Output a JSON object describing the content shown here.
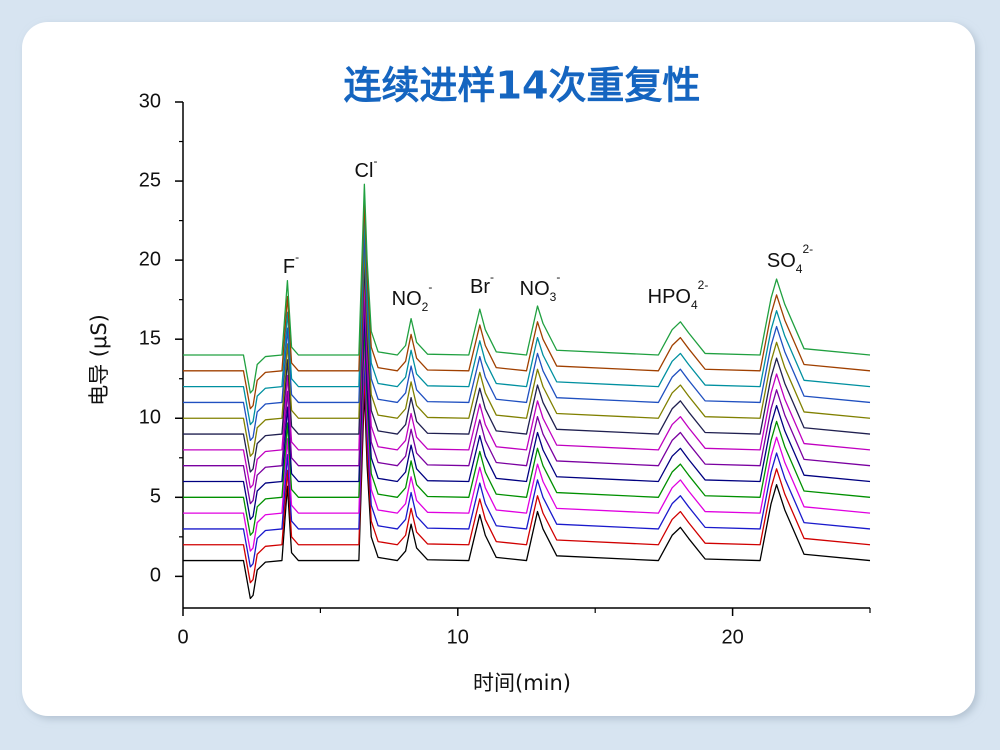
{
  "chart_data": {
    "type": "line",
    "title": "连续进样14次重复性",
    "x_label": "时间(min)",
    "y_label": "电导 (μS)",
    "xlim": [
      0,
      25
    ],
    "ylim": [
      -2,
      30
    ],
    "xticks": [
      0,
      10,
      20
    ],
    "xminorticks": [
      5,
      15,
      25
    ],
    "yticks": [
      0,
      5,
      10,
      15,
      20,
      25,
      30
    ],
    "yminorticks": [
      2.5,
      7.5,
      12.5,
      17.5,
      22.5,
      27.5
    ],
    "x": [
      0,
      2.2,
      2.45,
      2.55,
      2.7,
      3,
      3.6,
      3.8,
      3.95,
      4.2,
      6.4,
      6.6,
      6.7,
      6.85,
      7.1,
      7.8,
      8.1,
      8.3,
      8.5,
      8.9,
      10.4,
      10.8,
      11,
      11.4,
      12.5,
      12.9,
      13.1,
      13.6,
      17.3,
      17.8,
      18.1,
      18.4,
      19,
      21,
      21.4,
      21.6,
      21.9,
      22.6,
      25
    ],
    "series": [
      {
        "color": "#000000",
        "values": [
          1,
          1,
          -1.4,
          -1.2,
          0.4,
          0.9,
          1,
          5.7,
          1.5,
          1,
          1,
          11.8,
          7,
          2.5,
          1.2,
          1,
          1.6,
          3.3,
          1.8,
          1.05,
          1,
          3.9,
          2.6,
          1.2,
          1,
          4.1,
          3,
          1.3,
          1,
          2.6,
          3.1,
          2.4,
          1.1,
          1,
          4.6,
          5.8,
          4.2,
          1.4,
          1
        ]
      },
      {
        "color": "#d00000",
        "values": [
          2,
          2,
          -0.4,
          -0.2,
          1.4,
          1.9,
          2,
          6.7,
          2.5,
          2,
          2,
          12.8,
          8,
          3.5,
          2.2,
          2,
          2.6,
          4.3,
          2.8,
          2.05,
          2,
          4.9,
          3.6,
          2.2,
          2,
          5.1,
          4,
          2.3,
          2,
          3.6,
          4.1,
          3.4,
          2.1,
          2,
          5.6,
          6.8,
          5.2,
          2.4,
          2
        ]
      },
      {
        "color": "#1a1acc",
        "values": [
          3,
          3,
          0.6,
          0.8,
          2.4,
          2.9,
          3,
          7.7,
          3.5,
          3,
          3,
          13.8,
          9,
          4.5,
          3.2,
          3,
          3.6,
          5.3,
          3.8,
          3.05,
          3,
          5.9,
          4.6,
          3.2,
          3,
          6.1,
          5,
          3.3,
          3,
          4.6,
          5.1,
          4.4,
          3.1,
          3,
          6.6,
          7.8,
          6.2,
          3.4,
          3
        ]
      },
      {
        "color": "#e000e0",
        "values": [
          4,
          4,
          1.6,
          1.8,
          3.4,
          3.9,
          4,
          8.7,
          4.5,
          4,
          4,
          14.8,
          10,
          5.5,
          4.2,
          4,
          4.6,
          6.3,
          4.8,
          4.05,
          4,
          6.9,
          5.6,
          4.2,
          4,
          7.1,
          6,
          4.3,
          4,
          5.6,
          6.1,
          5.4,
          4.1,
          4,
          7.6,
          8.8,
          7.2,
          4.4,
          4
        ]
      },
      {
        "color": "#009000",
        "values": [
          5,
          5,
          2.6,
          2.8,
          4.4,
          4.9,
          5,
          9.7,
          5.5,
          5,
          5,
          15.8,
          11,
          6.5,
          5.2,
          5,
          5.6,
          7.3,
          5.8,
          5.05,
          5,
          7.9,
          6.6,
          5.2,
          5,
          8.1,
          7,
          5.3,
          5,
          6.6,
          7.1,
          6.4,
          5.1,
          5,
          8.6,
          9.8,
          8.2,
          5.4,
          5
        ]
      },
      {
        "color": "#000080",
        "values": [
          6,
          6,
          3.6,
          3.8,
          5.4,
          5.9,
          6,
          10.7,
          6.5,
          6,
          6,
          16.8,
          12,
          7.5,
          6.2,
          6,
          6.6,
          8.3,
          6.8,
          6.05,
          6,
          8.9,
          7.6,
          6.2,
          6,
          9.1,
          8,
          6.3,
          6,
          7.6,
          8.1,
          7.4,
          6.1,
          6,
          9.6,
          10.8,
          9.2,
          6.4,
          6
        ]
      },
      {
        "color": "#7a00a0",
        "values": [
          7,
          7,
          4.6,
          4.8,
          6.4,
          6.9,
          7,
          11.7,
          7.5,
          7,
          7,
          17.8,
          13,
          8.5,
          7.2,
          7,
          7.6,
          9.3,
          7.8,
          7.05,
          7,
          9.9,
          8.6,
          7.2,
          7,
          10.1,
          9,
          7.3,
          7,
          8.6,
          9.1,
          8.4,
          7.1,
          7,
          10.6,
          11.8,
          10.2,
          7.4,
          7
        ]
      },
      {
        "color": "#c000c0",
        "values": [
          8,
          8,
          5.6,
          5.8,
          7.4,
          7.9,
          8,
          12.7,
          8.5,
          8,
          8,
          18.8,
          14,
          9.5,
          8.2,
          8,
          8.6,
          10.3,
          8.8,
          8.05,
          8,
          10.9,
          9.6,
          8.2,
          8,
          11.1,
          10,
          8.3,
          8,
          9.6,
          10.1,
          9.4,
          8.1,
          8,
          11.6,
          12.8,
          11.2,
          8.4,
          8
        ]
      },
      {
        "color": "#202050",
        "values": [
          9,
          9,
          6.6,
          6.8,
          8.4,
          8.9,
          9,
          13.7,
          9.5,
          9,
          9,
          19.8,
          15,
          10.5,
          9.2,
          9,
          9.6,
          11.3,
          9.8,
          9.05,
          9,
          11.9,
          10.6,
          9.2,
          9,
          12.1,
          11,
          9.3,
          9,
          10.6,
          11.1,
          10.4,
          9.1,
          9,
          12.6,
          13.8,
          12.2,
          9.4,
          9
        ]
      },
      {
        "color": "#808000",
        "values": [
          10,
          10,
          7.6,
          7.8,
          9.4,
          9.9,
          10,
          14.7,
          10.5,
          10,
          10,
          20.8,
          16,
          11.5,
          10.2,
          10,
          10.6,
          12.3,
          10.8,
          10.05,
          10,
          12.9,
          11.6,
          10.2,
          10,
          13.1,
          12,
          10.3,
          10,
          11.6,
          12.1,
          11.4,
          10.1,
          10,
          13.6,
          14.8,
          13.2,
          10.4,
          10
        ]
      },
      {
        "color": "#2050c0",
        "values": [
          11,
          11,
          8.6,
          8.8,
          10.4,
          10.9,
          11,
          15.7,
          11.5,
          11,
          11,
          21.8,
          17,
          12.5,
          11.2,
          11,
          11.6,
          13.3,
          11.8,
          11.05,
          11,
          13.9,
          12.6,
          11.2,
          11,
          14.1,
          13,
          11.3,
          11,
          12.6,
          13.1,
          12.4,
          11.1,
          11,
          14.6,
          15.8,
          14.2,
          11.4,
          11
        ]
      },
      {
        "color": "#0090a0",
        "values": [
          12,
          12,
          9.6,
          9.8,
          11.4,
          11.9,
          12,
          16.7,
          12.5,
          12,
          12,
          22.8,
          18,
          13.5,
          12.2,
          12,
          12.6,
          14.3,
          12.8,
          12.05,
          12,
          14.9,
          13.6,
          12.2,
          12,
          15.1,
          14,
          12.3,
          12,
          13.6,
          14.1,
          13.4,
          12.1,
          12,
          15.6,
          16.8,
          15.2,
          12.4,
          12
        ]
      },
      {
        "color": "#a04000",
        "values": [
          13,
          13,
          10.6,
          10.8,
          12.4,
          12.9,
          13,
          17.7,
          13.5,
          13,
          13,
          23.8,
          19,
          14.5,
          13.2,
          13,
          13.6,
          15.3,
          13.8,
          13.05,
          13,
          15.9,
          14.6,
          13.2,
          13,
          16.1,
          15,
          13.3,
          13,
          14.6,
          15.1,
          14.4,
          13.1,
          13,
          16.6,
          17.8,
          16.2,
          13.4,
          13
        ]
      },
      {
        "color": "#20a040",
        "values": [
          14,
          14,
          11.6,
          11.8,
          13.4,
          13.9,
          14,
          18.7,
          14.5,
          14,
          14,
          24.8,
          20,
          15.5,
          14.2,
          14,
          14.6,
          16.3,
          14.8,
          14.05,
          14,
          16.9,
          15.6,
          14.2,
          14,
          17.1,
          16,
          14.3,
          14,
          15.6,
          16.1,
          15.4,
          14.1,
          14,
          17.6,
          18.8,
          17.2,
          14.4,
          14
        ]
      }
    ],
    "annotations": [
      {
        "base": "F",
        "sup": "-"
      },
      {
        "base": "Cl",
        "sup": "-"
      },
      {
        "base": "NO",
        "sub": "2",
        "sup": "-"
      },
      {
        "base": "Br",
        "sup": "-"
      },
      {
        "base": "NO",
        "sub": "3",
        "sup": "-"
      },
      {
        "base": "HPO",
        "sub": "4",
        "sup": "2-"
      },
      {
        "base": "SO",
        "sub": "4",
        "sup": "2-"
      }
    ]
  }
}
